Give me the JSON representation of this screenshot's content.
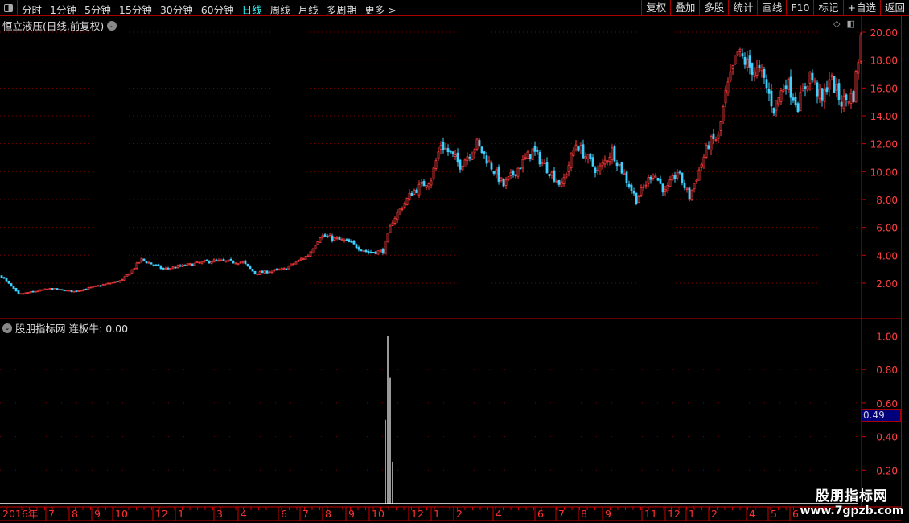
{
  "toolbar": {
    "periods": [
      "分时",
      "1分钟",
      "5分钟",
      "15分钟",
      "30分钟",
      "60分钟",
      "日线",
      "周线",
      "月线",
      "多周期",
      "更多 >"
    ],
    "active_period": "日线",
    "tools": [
      "复权",
      "叠加",
      "多股",
      "统计",
      "画线",
      "F10",
      "标记",
      "+自选",
      "返回"
    ]
  },
  "main_pane": {
    "title": "恒立液压(日线,前复权)",
    "price_axis": [
      "20.00",
      "18.00",
      "16.00",
      "14.00",
      "12.00",
      "10.00",
      "8.00",
      "6.00",
      "4.00",
      "2.00"
    ]
  },
  "indicator_pane": {
    "title": "股朋指标网",
    "indicator_label": "连板牛: 0.00",
    "axis": [
      "1.00",
      "0.80",
      "0.60",
      "0.40",
      "0.20"
    ],
    "cursor_value": "0.49"
  },
  "time_axis": [
    "2016年",
    "7",
    "8",
    "9",
    "10",
    "12",
    "1",
    "3",
    "4",
    "6",
    "7",
    "8",
    "9",
    "10",
    "12",
    "1",
    "2",
    "4",
    "6",
    "7",
    "8",
    "9",
    "11",
    "12",
    "1",
    "2",
    "4",
    "5",
    "6"
  ],
  "watermark": {
    "name": "股朋指标网",
    "url": "www.7gpzb.com"
  },
  "colors": {
    "up": "#ff3b3b",
    "down": "#3ed0ff",
    "axis": "#d00000",
    "active": "#33ffff",
    "indicator": "#ffffff"
  },
  "chart_data": {
    "type": "candlestick",
    "ylim": [
      0.9,
      20.5
    ],
    "price_path_close": [
      [
        0,
        2.5
      ],
      [
        7,
        1.2
      ],
      [
        20,
        1.6
      ],
      [
        30,
        1.4
      ],
      [
        50,
        2.2
      ],
      [
        58,
        3.7
      ],
      [
        67,
        3.0
      ],
      [
        87,
        3.6
      ],
      [
        100,
        3.5
      ],
      [
        105,
        2.7
      ],
      [
        117,
        3.0
      ],
      [
        127,
        4.0
      ],
      [
        132,
        5.4
      ],
      [
        143,
        5.0
      ],
      [
        152,
        4.2
      ],
      [
        158,
        4.3
      ],
      [
        162,
        6.5
      ],
      [
        170,
        8.5
      ],
      [
        178,
        9.5
      ],
      [
        182,
        12.0
      ],
      [
        190,
        10.5
      ],
      [
        197,
        12.0
      ],
      [
        208,
        9.0
      ],
      [
        220,
        11.5
      ],
      [
        232,
        9.0
      ],
      [
        238,
        12.0
      ],
      [
        247,
        10.0
      ],
      [
        253,
        11.5
      ],
      [
        263,
        8.0
      ],
      [
        270,
        10.0
      ],
      [
        275,
        8.5
      ],
      [
        280,
        10.0
      ],
      [
        285,
        8.2
      ],
      [
        293,
        12.0
      ],
      [
        297,
        12.5
      ],
      [
        300,
        15.5
      ],
      [
        305,
        18.5
      ],
      [
        310,
        17.5
      ],
      [
        315,
        17.0
      ],
      [
        320,
        14.5
      ],
      [
        325,
        16.5
      ],
      [
        330,
        14.8
      ],
      [
        335,
        17.0
      ],
      [
        340,
        15.0
      ],
      [
        343,
        16.8
      ],
      [
        348,
        15.0
      ],
      [
        353,
        15.5
      ],
      [
        356,
        19.5
      ]
    ],
    "indicator": {
      "name": "连板牛",
      "ylim": [
        0,
        1.05
      ],
      "spikes": [
        [
          159,
          0.5
        ],
        [
          160,
          1.0
        ],
        [
          161,
          0.75
        ],
        [
          162,
          0.25
        ]
      ]
    }
  }
}
